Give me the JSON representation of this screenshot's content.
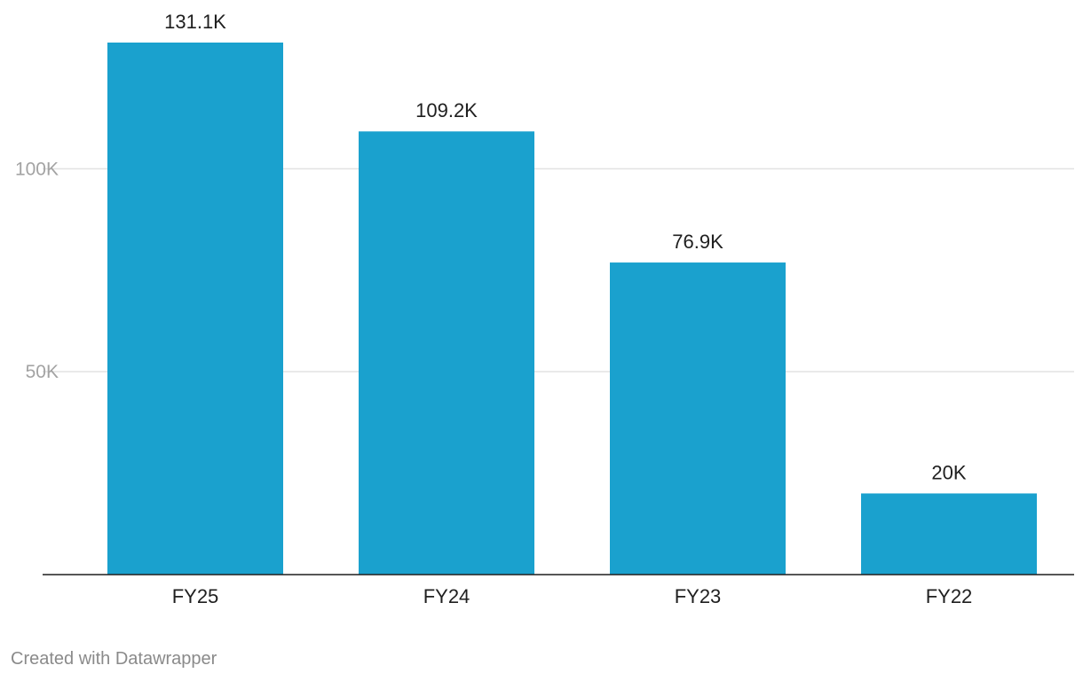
{
  "chart_data": {
    "type": "bar",
    "title": "",
    "xlabel": "",
    "ylabel": "",
    "categories": [
      "FY25",
      "FY24",
      "FY23",
      "FY22"
    ],
    "values": [
      131100,
      109200,
      76900,
      20000
    ],
    "value_labels": [
      "131.1K",
      "109.2K",
      "76.9K",
      "20K"
    ],
    "yticks": [
      50000,
      100000
    ],
    "ytick_labels": [
      "50K",
      "100K"
    ],
    "ylim": [
      0,
      131100
    ],
    "grid": true,
    "bar_color": "#1aa1ce",
    "legend": "none"
  },
  "footer": {
    "credit": "Created with Datawrapper"
  }
}
